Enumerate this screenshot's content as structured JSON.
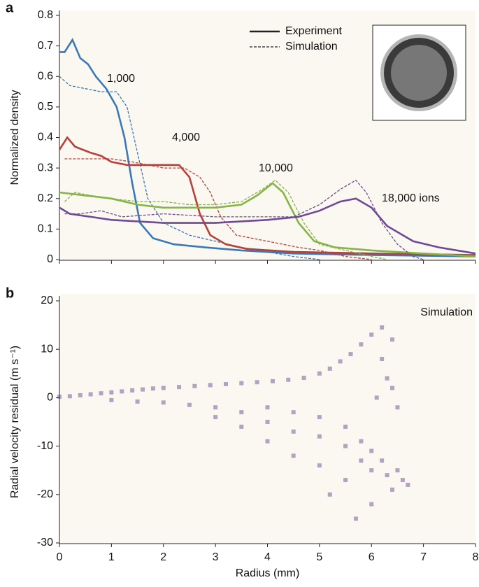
{
  "chart_data": [
    {
      "type": "line",
      "panel": "a",
      "ylabel": "Normalized density",
      "xlim": [
        0,
        8
      ],
      "xticks": [
        0,
        1,
        2,
        3,
        4,
        5,
        6,
        7,
        8
      ],
      "ylim": [
        0,
        0.8
      ],
      "yticks": [
        0,
        0.1,
        0.2,
        0.3,
        0.4,
        0.5,
        0.6,
        0.7,
        0.8
      ],
      "legend": [
        {
          "name": "Experiment",
          "dash": "none"
        },
        {
          "name": "Simulation",
          "dash": "4 2"
        }
      ],
      "series": [
        {
          "label": "1,000",
          "color": "#3b78b7",
          "experiment": {
            "x": [
              0,
              0.1,
              0.25,
              0.4,
              0.55,
              0.7,
              0.9,
              1.1,
              1.25,
              1.4,
              1.55,
              1.8,
              2.2,
              2.8,
              3.5,
              4.5,
              6,
              8
            ],
            "values": [
              0.68,
              0.68,
              0.72,
              0.66,
              0.64,
              0.6,
              0.56,
              0.5,
              0.4,
              0.25,
              0.12,
              0.07,
              0.05,
              0.04,
              0.03,
              0.02,
              0.015,
              0.01
            ]
          },
          "simulation": {
            "x": [
              0,
              0.2,
              0.5,
              0.8,
              1.1,
              1.3,
              1.5,
              1.7,
              2,
              2.5,
              3,
              3.5,
              4,
              4.5,
              5
            ],
            "values": [
              0.6,
              0.57,
              0.56,
              0.55,
              0.55,
              0.5,
              0.35,
              0.2,
              0.12,
              0.08,
              0.06,
              0.04,
              0.025,
              0.01,
              0
            ]
          }
        },
        {
          "label": "4,000",
          "color": "#b8403a",
          "experiment": {
            "x": [
              0,
              0.15,
              0.3,
              0.45,
              0.6,
              0.8,
              1,
              1.3,
              1.6,
              2,
              2.3,
              2.5,
              2.7,
              2.9,
              3.2,
              3.6,
              4.5,
              6,
              8
            ],
            "values": [
              0.36,
              0.4,
              0.37,
              0.36,
              0.35,
              0.34,
              0.32,
              0.31,
              0.31,
              0.31,
              0.31,
              0.27,
              0.15,
              0.08,
              0.05,
              0.035,
              0.025,
              0.02,
              0.015
            ]
          },
          "simulation": {
            "x": [
              0.1,
              0.5,
              1,
              1.4,
              2,
              2.4,
              2.7,
              2.9,
              3.1,
              3.4,
              4,
              4.6,
              5,
              5.5,
              6
            ],
            "values": [
              0.33,
              0.33,
              0.33,
              0.32,
              0.3,
              0.3,
              0.27,
              0.22,
              0.14,
              0.08,
              0.06,
              0.04,
              0.03,
              0.01,
              0
            ]
          }
        },
        {
          "label": "10,000",
          "color": "#86b446",
          "experiment": {
            "x": [
              0,
              0.5,
              1,
              1.5,
              2,
              2.5,
              3,
              3.5,
              3.8,
              4.1,
              4.3,
              4.6,
              4.9,
              5.3,
              6,
              7,
              8
            ],
            "values": [
              0.22,
              0.21,
              0.2,
              0.18,
              0.17,
              0.17,
              0.17,
              0.18,
              0.21,
              0.25,
              0.22,
              0.12,
              0.06,
              0.04,
              0.03,
              0.02,
              0.01
            ]
          },
          "simulation": {
            "x": [
              0.1,
              0.3,
              0.6,
              1,
              1.5,
              2,
              2.5,
              3,
              3.5,
              3.9,
              4.15,
              4.4,
              4.7,
              5,
              5.5,
              6,
              6.3
            ],
            "values": [
              0.19,
              0.22,
              0.21,
              0.2,
              0.19,
              0.19,
              0.18,
              0.18,
              0.19,
              0.23,
              0.26,
              0.22,
              0.12,
              0.05,
              0.03,
              0.01,
              0
            ]
          }
        },
        {
          "label": "18,000 ions",
          "color": "#6e4a96",
          "experiment": {
            "x": [
              0,
              0.2,
              0.6,
              1,
              2,
              3,
              4,
              4.6,
              5,
              5.4,
              5.7,
              6,
              6.3,
              6.8,
              7.3,
              8
            ],
            "values": [
              0.17,
              0.15,
              0.14,
              0.13,
              0.12,
              0.12,
              0.13,
              0.14,
              0.16,
              0.19,
              0.2,
              0.17,
              0.11,
              0.06,
              0.04,
              0.02
            ]
          },
          "simulation": {
            "x": [
              0.1,
              0.4,
              0.8,
              1.2,
              2,
              3,
              4,
              4.5,
              5,
              5.4,
              5.7,
              5.9,
              6.2,
              6.5,
              6.8,
              7
            ],
            "values": [
              0.15,
              0.15,
              0.16,
              0.14,
              0.15,
              0.14,
              0.14,
              0.14,
              0.18,
              0.23,
              0.26,
              0.22,
              0.12,
              0.05,
              0.01,
              0
            ]
          }
        }
      ]
    },
    {
      "type": "scatter",
      "panel": "b",
      "annotation": "Simulation",
      "color": "#5b3a86",
      "opacity": 0.45,
      "xlabel": "Radius (mm)",
      "ylabel": "Radial velocity residual (m s⁻¹)",
      "xlim": [
        0,
        8
      ],
      "xticks": [
        0,
        1,
        2,
        3,
        4,
        5,
        6,
        7,
        8
      ],
      "ylim": [
        -30,
        20
      ],
      "yticks": [
        -30,
        -20,
        -10,
        0,
        10,
        20
      ],
      "x": [
        0,
        0.2,
        0.4,
        0.6,
        0.8,
        1,
        1.2,
        1.4,
        1.6,
        1.8,
        2,
        2.3,
        2.6,
        2.9,
        3.2,
        3.5,
        3.8,
        4.1,
        4.4,
        4.7,
        5,
        5.2,
        5.4,
        5.6,
        5.8,
        6,
        6.2,
        1,
        1.5,
        2,
        2.5,
        3,
        3,
        3.5,
        3.5,
        4,
        4,
        4,
        4.5,
        4.5,
        4.5,
        5,
        5,
        5,
        5.2,
        5.5,
        5.5,
        5.5,
        5.8,
        5.8,
        6,
        6,
        6.2,
        6.3,
        6.5,
        6.6,
        6.7,
        6.4,
        6,
        5.7,
        6.3,
        6.4,
        6.5,
        6.2,
        6.4,
        6.1
      ],
      "y": [
        0.2,
        0.3,
        0.5,
        0.7,
        0.9,
        1.1,
        1.3,
        1.5,
        1.7,
        1.9,
        2,
        2.2,
        2.4,
        2.6,
        2.8,
        3,
        3.2,
        3.4,
        3.7,
        4.1,
        5,
        6,
        7.5,
        9,
        11,
        13,
        14.5,
        -0.5,
        -0.8,
        -1,
        -1.5,
        -2,
        -4,
        -3,
        -6,
        -2,
        -5,
        -9,
        -3,
        -7,
        -12,
        -4,
        -8,
        -14,
        -20,
        -6,
        -10,
        -17,
        -9,
        -13,
        -11,
        -15,
        -13,
        -16,
        -15,
        -17,
        -18,
        -19,
        -22,
        -25,
        4,
        2,
        -2,
        8,
        12,
        0
      ]
    }
  ]
}
